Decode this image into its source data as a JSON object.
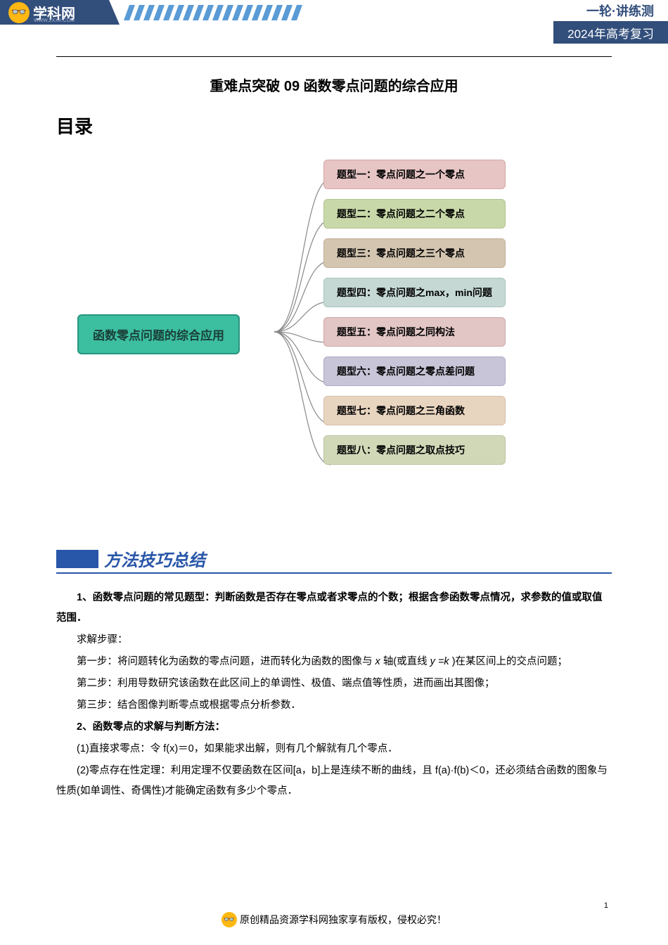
{
  "header": {
    "logo_text": "学科网",
    "logo_url": "WWW.ZXXK.COM",
    "right_top": "一轮·讲练测",
    "right_bottom": "2024年高考复习"
  },
  "title": "重难点突破 09 函数零点问题的综合应用",
  "toc": "目录",
  "mindmap": {
    "root": "函数零点问题的综合应用",
    "branches": [
      {
        "label": "题型一：零点问题之一个零点",
        "bg": "#e8c5c5",
        "border": "#d4a5a5"
      },
      {
        "label": "题型二：零点问题之二个零点",
        "bg": "#c8d8a8",
        "border": "#b0c490"
      },
      {
        "label": "题型三：零点问题之三个零点",
        "bg": "#d4c5b0",
        "border": "#c0b098"
      },
      {
        "label": "题型四：零点问题之max，min问题",
        "bg": "#c5d8d4",
        "border": "#a8c4be"
      },
      {
        "label": "题型五：零点问题之同构法",
        "bg": "#e2c5c5",
        "border": "#d0a8a8"
      },
      {
        "label": "题型六：零点问题之零点差问题",
        "bg": "#c8c5d8",
        "border": "#b0a8c4"
      },
      {
        "label": "题型七：零点问题之三角函数",
        "bg": "#e8d5c0",
        "border": "#d4bea8"
      },
      {
        "label": "题型八：零点问题之取点技巧",
        "bg": "#d0d8b8",
        "border": "#bcc4a0"
      }
    ]
  },
  "section_title": "方法技巧总结",
  "body": {
    "p1_bold": "1、函数零点问题的常见题型：判断函数是否存在零点或者求零点的个数；根据含参函数零点情况，求参数的值或取值范围．",
    "p2": "求解步骤：",
    "p3_a": "第一步：将问题转化为函数的零点问题，进而转化为函数的图像与",
    "p3_var1": " x ",
    "p3_b": "轴(或直线",
    "p3_var2": " y =k ",
    "p3_c": ")在某区间上的交点问题；",
    "p4": "第二步：利用导数研究该函数在此区间上的单调性、极值、端点值等性质，进而画出其图像；",
    "p5": "第三步：结合图像判断零点或根据零点分析参数．",
    "p6_bold": "2、函数零点的求解与判断方法：",
    "p7": "(1)直接求零点：令 f(x)＝0，如果能求出解，则有几个解就有几个零点．",
    "p8": "(2)零点存在性定理：利用定理不仅要函数在区间[a，b]上是连续不断的曲线，且 f(a)·f(b)＜0，还必须结合函数的图象与性质(如单调性、奇偶性)才能确定函数有多少个零点．"
  },
  "footer": "原创精品资源学科网独家享有版权，侵权必究！",
  "page_num": "1",
  "stripe_color": "#5a9bd5",
  "stripe_count": 18
}
